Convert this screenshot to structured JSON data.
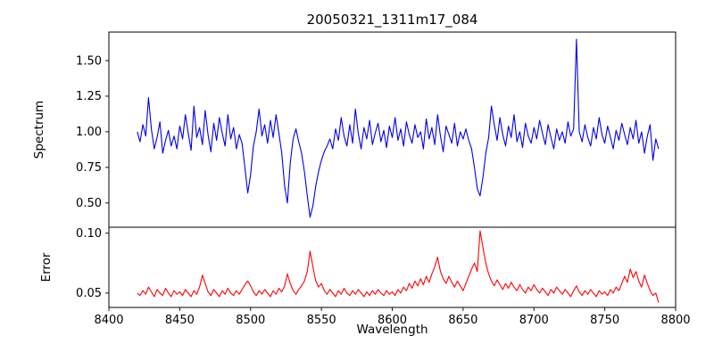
{
  "figure": {
    "title": "20050321_1311m17_084",
    "xlabel": "Wavelength",
    "top_ylabel": "Spectrum",
    "bottom_ylabel": "Error"
  },
  "chart_data": [
    {
      "type": "line",
      "name": "spectrum",
      "title": "20050321_1311m17_084",
      "ylabel": "Spectrum",
      "color": "#0000ee",
      "xlim": [
        8400,
        8800
      ],
      "ylim": [
        0.33,
        1.7
      ],
      "yticks": [
        0.5,
        0.75,
        1.0,
        1.25,
        1.5
      ],
      "ytick_labels": [
        "0.50",
        "0.75",
        "1.00",
        "1.25",
        "1.50"
      ],
      "grid": false,
      "x_start": 8420,
      "x_step": 2,
      "values": [
        1.0,
        0.93,
        1.05,
        0.97,
        1.24,
        1.02,
        0.88,
        0.96,
        1.07,
        0.85,
        0.94,
        1.01,
        0.9,
        0.97,
        0.88,
        1.04,
        0.95,
        1.12,
        0.99,
        0.87,
        1.18,
        0.96,
        1.03,
        0.91,
        1.15,
        0.98,
        0.86,
        1.06,
        0.94,
        1.1,
        0.99,
        0.9,
        1.12,
        0.95,
        1.03,
        0.88,
        0.98,
        0.92,
        0.75,
        0.57,
        0.7,
        0.9,
        1.0,
        1.16,
        0.97,
        1.05,
        0.92,
        1.08,
        0.96,
        1.12,
        0.99,
        0.85,
        0.62,
        0.5,
        0.78,
        0.95,
        1.02,
        0.93,
        0.85,
        0.72,
        0.55,
        0.4,
        0.48,
        0.62,
        0.72,
        0.8,
        0.86,
        0.9,
        0.95,
        0.88,
        1.02,
        0.94,
        1.1,
        0.97,
        0.9,
        1.05,
        0.92,
        1.16,
        0.99,
        0.88,
        1.03,
        0.95,
        1.08,
        0.91,
        0.99,
        1.06,
        0.93,
        1.01,
        0.89,
        1.04,
        0.96,
        1.1,
        0.94,
        1.02,
        0.9,
        1.07,
        0.98,
        0.92,
        1.05,
        0.96,
        1.0,
        0.88,
        1.09,
        0.95,
        1.03,
        0.91,
        1.12,
        0.97,
        0.86,
        1.04,
        0.98,
        0.92,
        1.06,
        0.9,
        1.0,
        0.95,
        1.02,
        0.94,
        0.88,
        0.75,
        0.6,
        0.55,
        0.68,
        0.85,
        0.96,
        1.18,
        1.05,
        0.94,
        1.1,
        0.98,
        0.9,
        1.04,
        0.96,
        1.12,
        0.93,
        1.0,
        0.89,
        1.06,
        0.97,
        0.92,
        1.03,
        0.95,
        1.08,
        0.99,
        0.91,
        1.05,
        0.96,
        0.88,
        1.02,
        0.94,
        1.0,
        0.92,
        1.07,
        0.97,
        1.02,
        1.65,
        1.0,
        0.93,
        1.05,
        0.96,
        0.9,
        1.03,
        0.95,
        1.1,
        0.98,
        0.92,
        1.04,
        0.96,
        0.88,
        1.01,
        0.94,
        1.06,
        0.98,
        0.91,
        1.03,
        0.95,
        1.08,
        0.92,
        1.0,
        0.85,
        0.97,
        1.05,
        0.8,
        0.95,
        0.88
      ],
      "features_note": "absorption dips near 8498, 8526, 8542 (deepest ~0.40), 8662; emission spike ~1.65 at 8730"
    },
    {
      "type": "line",
      "name": "error",
      "ylabel": "Error",
      "xlabel": "Wavelength",
      "color": "#ff0000",
      "xlim": [
        8400,
        8800
      ],
      "ylim": [
        0.038,
        0.105
      ],
      "yticks": [
        0.05,
        0.1
      ],
      "ytick_labels": [
        "0.05",
        "0.10"
      ],
      "xticks": [
        8400,
        8450,
        8500,
        8550,
        8600,
        8650,
        8700,
        8750,
        8800
      ],
      "xtick_labels": [
        "8400",
        "8450",
        "8500",
        "8550",
        "8600",
        "8650",
        "8700",
        "8750",
        "8800"
      ],
      "grid": false,
      "x_start": 8420,
      "x_step": 2,
      "values": [
        0.05,
        0.048,
        0.052,
        0.049,
        0.055,
        0.051,
        0.047,
        0.053,
        0.05,
        0.048,
        0.054,
        0.05,
        0.047,
        0.052,
        0.049,
        0.051,
        0.048,
        0.053,
        0.05,
        0.047,
        0.052,
        0.049,
        0.055,
        0.065,
        0.058,
        0.051,
        0.048,
        0.053,
        0.05,
        0.047,
        0.052,
        0.049,
        0.054,
        0.05,
        0.048,
        0.052,
        0.049,
        0.053,
        0.057,
        0.06,
        0.056,
        0.051,
        0.048,
        0.052,
        0.049,
        0.053,
        0.05,
        0.047,
        0.052,
        0.049,
        0.054,
        0.051,
        0.056,
        0.066,
        0.058,
        0.052,
        0.049,
        0.053,
        0.056,
        0.06,
        0.068,
        0.085,
        0.072,
        0.06,
        0.055,
        0.058,
        0.052,
        0.049,
        0.053,
        0.05,
        0.047,
        0.052,
        0.049,
        0.054,
        0.05,
        0.048,
        0.052,
        0.049,
        0.053,
        0.05,
        0.047,
        0.051,
        0.048,
        0.052,
        0.049,
        0.053,
        0.05,
        0.048,
        0.052,
        0.049,
        0.051,
        0.048,
        0.053,
        0.05,
        0.055,
        0.052,
        0.058,
        0.054,
        0.06,
        0.056,
        0.062,
        0.057,
        0.064,
        0.059,
        0.066,
        0.072,
        0.08,
        0.068,
        0.062,
        0.058,
        0.064,
        0.059,
        0.055,
        0.06,
        0.056,
        0.052,
        0.058,
        0.064,
        0.07,
        0.075,
        0.068,
        0.102,
        0.088,
        0.075,
        0.066,
        0.06,
        0.056,
        0.061,
        0.057,
        0.053,
        0.058,
        0.054,
        0.059,
        0.055,
        0.052,
        0.057,
        0.053,
        0.05,
        0.055,
        0.052,
        0.057,
        0.053,
        0.05,
        0.054,
        0.051,
        0.048,
        0.053,
        0.05,
        0.055,
        0.052,
        0.049,
        0.053,
        0.05,
        0.047,
        0.052,
        0.056,
        0.051,
        0.048,
        0.052,
        0.049,
        0.053,
        0.05,
        0.047,
        0.052,
        0.049,
        0.051,
        0.048,
        0.053,
        0.05,
        0.055,
        0.052,
        0.058,
        0.064,
        0.059,
        0.07,
        0.063,
        0.068,
        0.06,
        0.055,
        0.065,
        0.058,
        0.052,
        0.048,
        0.05,
        0.042
      ],
      "features_note": "error baseline ~0.05 with peaks ~0.085 at 8542 and ~0.10 at 8662"
    }
  ]
}
